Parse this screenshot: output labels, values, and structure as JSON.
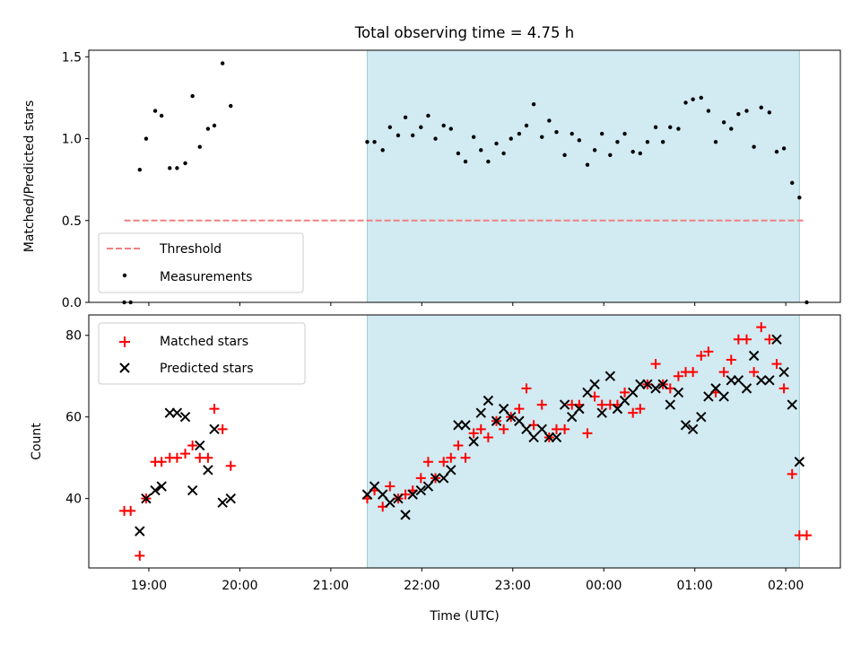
{
  "chart_data": {
    "title": "Total observing time = 4.75 h",
    "shaded_interval_hours": [
      21.4,
      26.15
    ],
    "x_axis": {
      "label": "Time (UTC)",
      "ticks": [
        {
          "value": 19,
          "label": "19:00"
        },
        {
          "value": 20,
          "label": "20:00"
        },
        {
          "value": 21,
          "label": "21:00"
        },
        {
          "value": 22,
          "label": "22:00"
        },
        {
          "value": 23,
          "label": "23:00"
        },
        {
          "value": 24,
          "label": "00:00"
        },
        {
          "value": 25,
          "label": "01:00"
        },
        {
          "value": 26,
          "label": "02:00"
        }
      ],
      "range": [
        18.34,
        26.6
      ],
      "note": "hours UTC, values past 24 are after midnight"
    },
    "panels": [
      {
        "type": "scatter",
        "ylabel": "Matched/Predicted stars",
        "ylim": [
          0,
          1.54
        ],
        "yticks": [
          "0.0",
          "0.5",
          "1.0",
          "1.5"
        ],
        "ytick_values": [
          0,
          0.5,
          1.0,
          1.5
        ],
        "legend_position": "lower-left",
        "threshold": {
          "name": "Threshold",
          "value": 0.5,
          "x_range": [
            18.73,
            26.2
          ],
          "color": "#f08080"
        },
        "series": [
          {
            "name": "Measurements",
            "color": "#000000",
            "marker": "dot",
            "x": [
              18.73,
              18.8,
              18.9,
              18.97,
              19.07,
              19.14,
              19.23,
              19.31,
              19.4,
              19.48,
              19.56,
              19.65,
              19.72,
              19.81,
              19.9,
              21.4,
              21.48,
              21.57,
              21.65,
              21.74,
              21.82,
              21.9,
              21.99,
              22.07,
              22.15,
              22.24,
              22.32,
              22.4,
              22.48,
              22.57,
              22.65,
              22.73,
              22.82,
              22.9,
              22.98,
              23.07,
              23.15,
              23.23,
              23.32,
              23.4,
              23.48,
              23.57,
              23.65,
              23.73,
              23.82,
              23.9,
              23.98,
              24.07,
              24.15,
              24.23,
              24.32,
              24.4,
              24.48,
              24.57,
              24.65,
              24.73,
              24.82,
              24.9,
              24.98,
              25.07,
              25.15,
              25.23,
              25.32,
              25.4,
              25.48,
              25.57,
              25.65,
              25.73,
              25.82,
              25.9,
              25.98,
              26.07,
              26.15,
              26.23
            ],
            "y": [
              0.0,
              0.0,
              0.81,
              1.0,
              1.17,
              1.14,
              0.82,
              0.82,
              0.85,
              1.26,
              0.95,
              1.06,
              1.08,
              1.46,
              1.2,
              0.98,
              0.98,
              0.93,
              1.07,
              1.02,
              1.13,
              1.02,
              1.07,
              1.14,
              1.0,
              1.08,
              1.06,
              0.91,
              0.86,
              1.01,
              0.93,
              0.86,
              0.97,
              0.91,
              1.0,
              1.03,
              1.08,
              1.21,
              1.01,
              1.11,
              1.04,
              0.9,
              1.03,
              0.99,
              0.84,
              0.93,
              1.03,
              0.9,
              0.98,
              1.03,
              0.92,
              0.91,
              0.98,
              1.07,
              0.98,
              1.07,
              1.06,
              1.22,
              1.24,
              1.25,
              1.17,
              0.98,
              1.1,
              1.06,
              1.15,
              1.17,
              0.95,
              1.19,
              1.16,
              0.92,
              0.94,
              0.73,
              0.64,
              0.0
            ]
          }
        ]
      },
      {
        "type": "scatter",
        "ylabel": "Count",
        "ylim": [
          23,
          85
        ],
        "yticks": [
          "40",
          "60",
          "80"
        ],
        "ytick_values": [
          40,
          60,
          80
        ],
        "legend_position": "upper-left",
        "series": [
          {
            "name": "Matched stars",
            "color": "#ff0000",
            "marker": "plus",
            "x": [
              18.73,
              18.8,
              18.9,
              18.97,
              19.07,
              19.14,
              19.23,
              19.31,
              19.4,
              19.48,
              19.56,
              19.65,
              19.72,
              19.81,
              19.9,
              21.4,
              21.48,
              21.57,
              21.65,
              21.74,
              21.82,
              21.9,
              21.99,
              22.07,
              22.15,
              22.24,
              22.32,
              22.4,
              22.48,
              22.57,
              22.65,
              22.73,
              22.82,
              22.9,
              22.98,
              23.07,
              23.15,
              23.23,
              23.32,
              23.4,
              23.48,
              23.57,
              23.65,
              23.73,
              23.82,
              23.9,
              23.98,
              24.07,
              24.15,
              24.23,
              24.32,
              24.4,
              24.48,
              24.57,
              24.65,
              24.73,
              24.82,
              24.9,
              24.98,
              25.07,
              25.15,
              25.23,
              25.32,
              25.4,
              25.48,
              25.57,
              25.65,
              25.73,
              25.82,
              25.9,
              25.98,
              26.07,
              26.15,
              26.23
            ],
            "y": [
              37,
              37,
              26,
              40,
              49,
              49,
              50,
              50,
              51,
              53,
              50,
              50,
              62,
              57,
              48,
              40,
              42,
              38,
              43,
              40,
              41,
              42,
              45,
              49,
              45,
              49,
              50,
              53,
              50,
              56,
              57,
              55,
              59,
              57,
              60,
              62,
              67,
              58,
              63,
              55,
              57,
              57,
              63,
              63,
              56,
              65,
              63,
              63,
              63,
              66,
              61,
              62,
              68,
              73,
              68,
              67,
              70,
              71,
              71,
              75,
              76,
              66,
              71,
              74,
              79,
              79,
              71,
              82,
              79,
              73,
              67,
              46,
              31,
              31
            ]
          },
          {
            "name": "Predicted stars",
            "color": "#000000",
            "marker": "x",
            "x": [
              18.9,
              18.97,
              19.07,
              19.14,
              19.23,
              19.31,
              19.4,
              19.48,
              19.56,
              19.65,
              19.72,
              19.81,
              19.9,
              21.4,
              21.48,
              21.57,
              21.65,
              21.74,
              21.82,
              21.9,
              21.99,
              22.07,
              22.15,
              22.24,
              22.32,
              22.4,
              22.48,
              22.57,
              22.65,
              22.73,
              22.82,
              22.9,
              22.98,
              23.07,
              23.15,
              23.23,
              23.32,
              23.4,
              23.48,
              23.57,
              23.65,
              23.73,
              23.82,
              23.9,
              23.98,
              24.07,
              24.15,
              24.23,
              24.32,
              24.4,
              24.48,
              24.57,
              24.65,
              24.73,
              24.82,
              24.9,
              24.98,
              25.07,
              25.15,
              25.23,
              25.32,
              25.4,
              25.48,
              25.57,
              25.65,
              25.73,
              25.82,
              25.9,
              25.98,
              26.07,
              26.15
            ],
            "y": [
              32,
              40,
              42,
              43,
              61,
              61,
              60,
              42,
              53,
              47,
              57,
              39,
              40,
              41,
              43,
              41,
              39,
              40,
              36,
              41,
              42,
              43,
              45,
              45,
              47,
              58,
              58,
              54,
              61,
              64,
              59,
              62,
              60,
              59,
              57,
              55,
              57,
              55,
              55,
              63,
              60,
              62,
              66,
              68,
              61,
              70,
              62,
              64,
              66,
              68,
              68,
              67,
              68,
              63,
              66,
              58,
              57,
              60,
              65,
              67,
              65,
              69,
              69,
              67,
              75,
              69,
              69,
              79,
              71,
              63,
              49
            ]
          }
        ]
      }
    ]
  }
}
